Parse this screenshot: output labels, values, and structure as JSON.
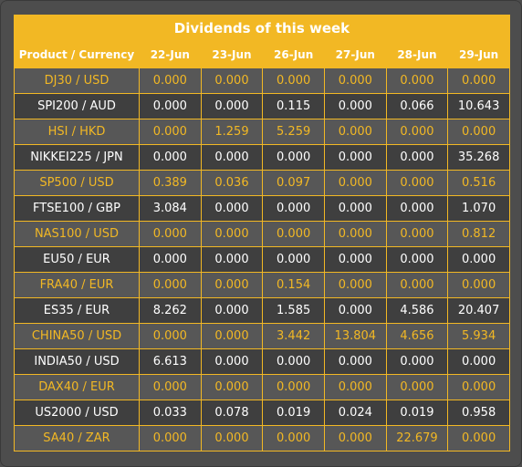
{
  "title": "Dividends of this week",
  "headers": [
    "Product / Currency",
    "22-Jun",
    "23-Jun",
    "26-Jun",
    "27-Jun",
    "28-Jun",
    "29-Jun"
  ],
  "rows": [
    {
      "product": "DJ30 / USD",
      "values": [
        "0.000",
        "0.000",
        "0.000",
        "0.000",
        "0.000",
        "0.000"
      ]
    },
    {
      "product": "SPI200 / AUD",
      "values": [
        "0.000",
        "0.000",
        "0.115",
        "0.000",
        "0.066",
        "10.643"
      ]
    },
    {
      "product": "HSI / HKD",
      "values": [
        "0.000",
        "1.259",
        "5.259",
        "0.000",
        "0.000",
        "0.000"
      ]
    },
    {
      "product": "NIKKEI225 / JPN",
      "values": [
        "0.000",
        "0.000",
        "0.000",
        "0.000",
        "0.000",
        "35.268"
      ]
    },
    {
      "product": "SP500 / USD",
      "values": [
        "0.389",
        "0.036",
        "0.097",
        "0.000",
        "0.000",
        "0.516"
      ]
    },
    {
      "product": "FTSE100 / GBP",
      "values": [
        "3.084",
        "0.000",
        "0.000",
        "0.000",
        "0.000",
        "1.070"
      ]
    },
    {
      "product": "NAS100 / USD",
      "values": [
        "0.000",
        "0.000",
        "0.000",
        "0.000",
        "0.000",
        "0.812"
      ]
    },
    {
      "product": "EU50 / EUR",
      "values": [
        "0.000",
        "0.000",
        "0.000",
        "0.000",
        "0.000",
        "0.000"
      ]
    },
    {
      "product": "FRA40 / EUR",
      "values": [
        "0.000",
        "0.000",
        "0.154",
        "0.000",
        "0.000",
        "0.000"
      ]
    },
    {
      "product": "ES35 / EUR",
      "values": [
        "8.262",
        "0.000",
        "1.585",
        "0.000",
        "4.586",
        "20.407"
      ]
    },
    {
      "product": "CHINA50 / USD",
      "values": [
        "0.000",
        "0.000",
        "3.442",
        "13.804",
        "4.656",
        "5.934"
      ]
    },
    {
      "product": "INDIA50 / USD",
      "values": [
        "6.613",
        "0.000",
        "0.000",
        "0.000",
        "0.000",
        "0.000"
      ]
    },
    {
      "product": "DAX40 / EUR",
      "values": [
        "0.000",
        "0.000",
        "0.000",
        "0.000",
        "0.000",
        "0.000"
      ]
    },
    {
      "product": "US2000 / USD",
      "values": [
        "0.033",
        "0.078",
        "0.019",
        "0.024",
        "0.019",
        "0.958"
      ]
    },
    {
      "product": "SA40 / ZAR",
      "values": [
        "0.000",
        "0.000",
        "0.000",
        "0.000",
        "22.679",
        "0.000"
      ]
    }
  ],
  "colors": {
    "accent": "#f2b824",
    "background": "#4d4d4d",
    "row_light": "#575757",
    "row_dark": "#3f3f3f",
    "text_light": "#ffffff"
  }
}
